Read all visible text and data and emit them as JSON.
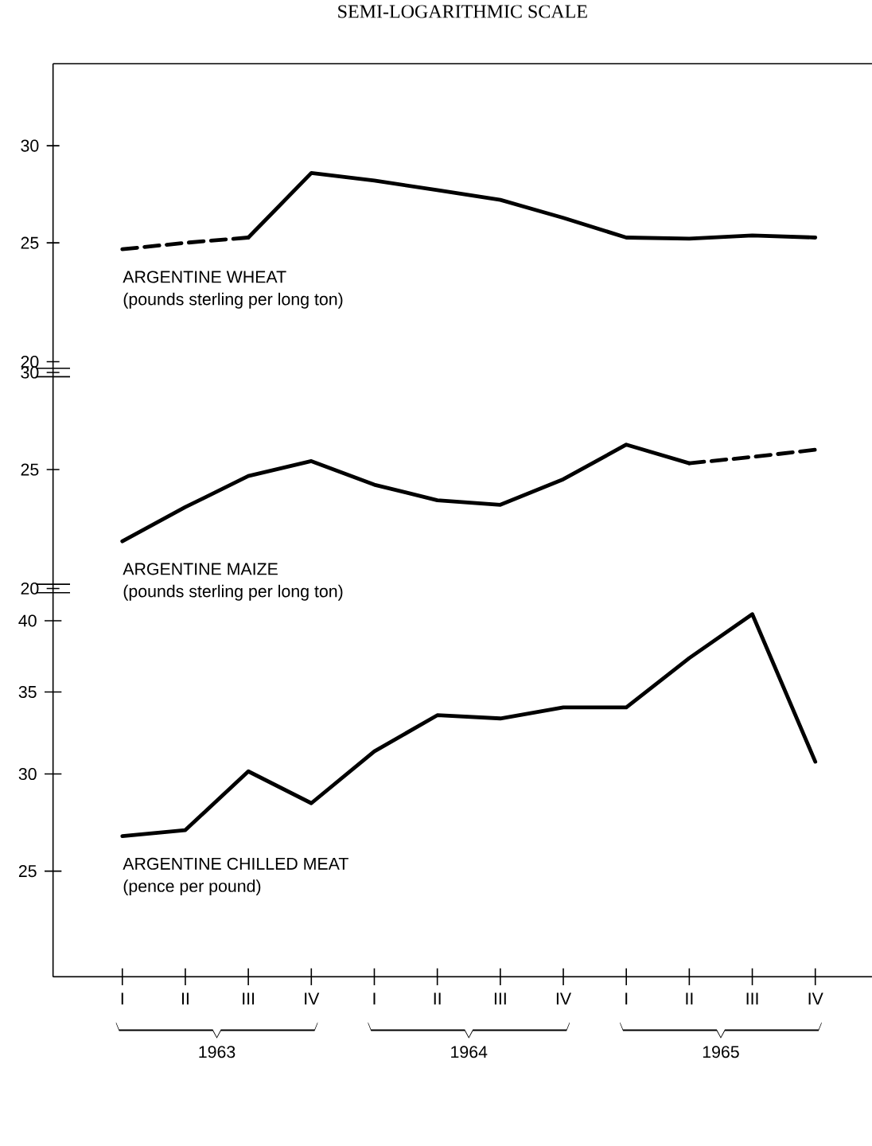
{
  "chart_data": [
    {
      "type": "line",
      "title": "SEMI-LOGARITHMIC SCALE",
      "annotations": [
        "ARGENTINE WHEAT",
        "(pounds sterling per long ton)"
      ],
      "log": true,
      "tick_labels": "y",
      "ylim": [
        19.6,
        35
      ],
      "yticks": [
        20,
        25,
        30
      ],
      "categories": [
        null,
        null,
        null,
        null,
        null,
        null,
        null,
        null,
        null,
        null,
        null,
        null
      ],
      "series": [
        {
          "color": "#000000",
          "line_style": "dashed",
          "values": [
            24.7,
            25.0,
            25.25,
            null,
            null,
            null,
            null,
            null,
            null,
            null,
            null,
            null
          ]
        },
        {
          "color": "#000000",
          "line_style": "solid",
          "values": [
            null,
            null,
            25.25,
            28.5,
            28.1,
            27.6,
            27.1,
            26.2,
            25.25,
            25.2,
            25.35,
            25.25
          ]
        }
      ]
    },
    {
      "type": "line",
      "annotations": [
        "ARGENTINE MAIZE",
        "(pounds sterling per long ton)"
      ],
      "log": true,
      "tick_labels": "y",
      "ylim": [
        20,
        30
      ],
      "yticks": [
        20,
        25,
        30
      ],
      "categories": [
        null,
        null,
        null,
        null,
        null,
        null,
        null,
        null,
        null,
        null,
        null,
        null
      ],
      "series": [
        {
          "color": "#000000",
          "line_style": "solid",
          "values": [
            21.85,
            23.3,
            24.7,
            25.4,
            24.3,
            23.6,
            23.4,
            24.55,
            26.2,
            25.3,
            null,
            null
          ]
        },
        {
          "color": "#000000",
          "line_style": "dashed",
          "values": [
            null,
            null,
            null,
            null,
            null,
            null,
            null,
            null,
            null,
            25.3,
            25.6,
            25.95
          ]
        }
      ]
    },
    {
      "type": "line",
      "annotations": [
        "ARGENTINE CHILLED MEAT",
        "(pence per pound)",
        "1963",
        "1964",
        "1965"
      ],
      "log": true,
      "ylim": [
        20.5,
        42.5
      ],
      "yticks": [
        25,
        30,
        35,
        40
      ],
      "categories": [
        "I",
        "II",
        "III",
        "IV",
        "I",
        "II",
        "III",
        "IV",
        "I",
        "II",
        "III",
        "IV"
      ],
      "series": [
        {
          "color": "#000000",
          "line_style": "solid",
          "values": [
            26.7,
            27.0,
            30.15,
            28.4,
            31.3,
            33.5,
            33.3,
            34.0,
            34.0,
            37.3,
            40.5,
            30.7
          ]
        }
      ]
    }
  ]
}
